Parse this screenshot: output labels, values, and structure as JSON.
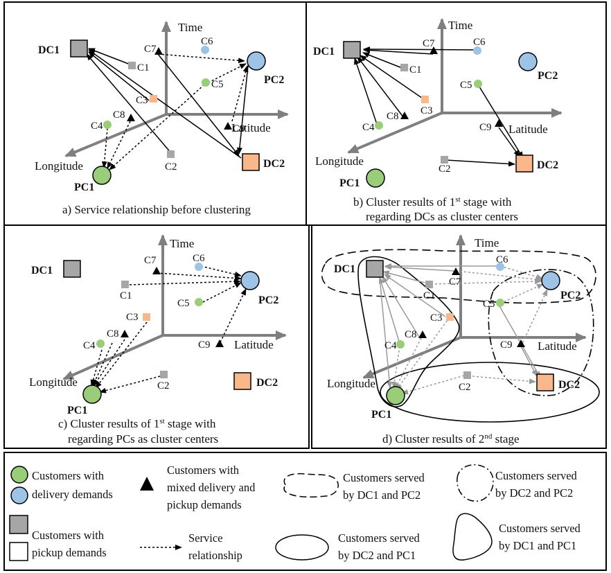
{
  "colors": {
    "green": "#9acd7a",
    "blue": "#9dc3e6",
    "gray_square": "#a6a6a6",
    "orange_square": "#f8b88b",
    "axis": "#7f7f7f",
    "border": "#000000"
  },
  "axes": {
    "time": "Time",
    "latitude": "Latitude",
    "longitude": "Longitude"
  },
  "nodes": {
    "dc1": "DC1",
    "dc2": "DC2",
    "pc1": "PC1",
    "pc2": "PC2",
    "c1": "C1",
    "c2": "C2",
    "c3": "C3",
    "c4": "C4",
    "c5": "C5",
    "c6": "C6",
    "c7": "C7",
    "c8": "C8",
    "c9": "C9"
  },
  "captions": {
    "a": "a) Service relationship before clustering",
    "b_pre": "b) Cluster results of 1",
    "b_sup": "st",
    "b_post": " stage with",
    "b_line2": "regarding DCs as cluster centers",
    "c_pre": "c) Cluster results of 1",
    "c_sup": "st",
    "c_post": " stage with",
    "c_line2": "regarding PCs as cluster centers",
    "d_pre": "d) Cluster results of 2",
    "d_sup": "nd",
    "d_post": " stage"
  },
  "legend": {
    "green_l1": "Customers with",
    "green_l2": "delivery demands",
    "tri_l1": "Customers with",
    "tri_l2": "mixed delivery and",
    "tri_l3": "pickup demands",
    "sq_l1": "Customers with",
    "sq_l2": "pickup demands",
    "arrow_l1": "Service",
    "arrow_l2": "relationship",
    "dash_l1": "Customers served",
    "dash_l2": "by DC1 and PC2",
    "dashdot_l1": "Customers served",
    "dashdot_l2": "by DC2 and PC2",
    "ellipse_l1": "Customers served",
    "ellipse_l2": "by DC2 and PC1",
    "tri_shape_l1": "Customers served",
    "tri_shape_l2": "by DC1 and PC1"
  }
}
